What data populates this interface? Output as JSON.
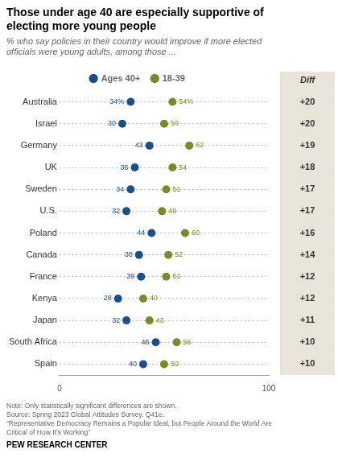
{
  "chart_data": {
    "type": "scatter",
    "title": [
      "Those under age 40 are especially supportive of",
      "electing more young people"
    ],
    "subtitle": [
      "% who say policies in their country would improve if more elected",
      "officials were young adults, among those ..."
    ],
    "orientation": "horizontal",
    "categories": [
      "Australia",
      "Israel",
      "Germany",
      "UK",
      "Sweden",
      "U.S.",
      "Poland",
      "Canada",
      "France",
      "Kenya",
      "Japan",
      "South Africa",
      "Spain"
    ],
    "series": [
      {
        "name": "Ages 40+",
        "color": "#1a4f8a",
        "values": [
          34,
          30,
          43,
          36,
          34,
          32,
          44,
          38,
          39,
          28,
          32,
          46,
          40
        ],
        "value_labels": [
          "34%",
          "30",
          "43",
          "36",
          "34",
          "32",
          "44",
          "38",
          "39",
          "28",
          "32",
          "46",
          "40"
        ]
      },
      {
        "name": "18-39",
        "color": "#7a8a28",
        "values": [
          54,
          50,
          62,
          54,
          51,
          49,
          60,
          52,
          51,
          40,
          43,
          56,
          50
        ],
        "value_labels": [
          "54%",
          "50",
          "62",
          "54",
          "51",
          "49",
          "60",
          "52",
          "51",
          "40",
          "43",
          "56",
          "50"
        ]
      }
    ],
    "marker": "circle",
    "xlim": [
      0,
      100
    ],
    "xticks": [
      0,
      100
    ],
    "grid": "y",
    "legend": "top",
    "data_labels": true,
    "diffs": {
      "name": "Diff",
      "color": "#e8e4da",
      "values": [
        20,
        20,
        19,
        18,
        17,
        17,
        16,
        14,
        12,
        12,
        11,
        10,
        10
      ],
      "value_labels": [
        "+20",
        "+20",
        "+19",
        "+18",
        "+17",
        "+17",
        "+16",
        "+14",
        "+12",
        "+12",
        "+11",
        "+10",
        "+10"
      ]
    },
    "notes": [
      "Note: Only statistically significant differences are shown.",
      "Source: Spring 2023 Global Attitudes Survey. Q41e.",
      "“Representative Democracy Remains a Popular Ideal, but People Around the World Are",
      "Critical of How It’s Working”"
    ],
    "source": "PEW RESEARCH CENTER"
  }
}
